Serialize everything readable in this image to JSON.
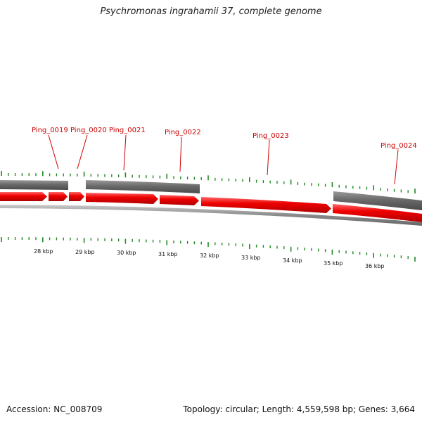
{
  "title": "Psychromonas ingrahamii 37, complete genome",
  "footer": {
    "accession": "Accession: NC_008709",
    "summary": "Topology: circular; Length: 4,559,598 bp; Genes: 3,664"
  },
  "colors": {
    "gene_label": "#cc0000",
    "gene_fill": "#ee0000",
    "gray_bar": "#666666",
    "backbone": "#888888",
    "tick": "#228822"
  },
  "genes": [
    {
      "id": "Ping_0019"
    },
    {
      "id": "Ping_0020"
    },
    {
      "id": "Ping_0021"
    },
    {
      "id": "Ping_0022"
    },
    {
      "id": "Ping_0023"
    },
    {
      "id": "Ping_0024"
    }
  ],
  "kbp_labels": [
    "28 kbp",
    "29 kbp",
    "30 kbp",
    "31 kbp",
    "32 kbp",
    "33 kbp",
    "34 kbp",
    "35 kbp",
    "36 kbp"
  ]
}
